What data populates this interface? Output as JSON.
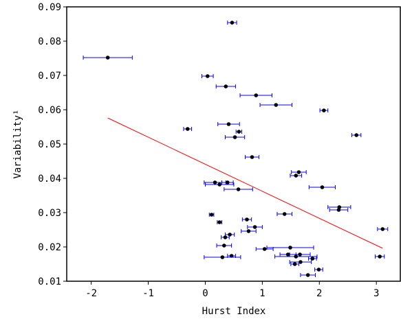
{
  "chart_data": {
    "type": "scatter",
    "xlabel": "Hurst Index",
    "ylabel": "Variability¹",
    "xlim": [
      -2.43,
      3.42
    ],
    "ylim": [
      0.01,
      0.09
    ],
    "xticks": [
      -2,
      -1,
      0,
      1,
      2,
      3
    ],
    "yticks": [
      0.01,
      0.02,
      0.03,
      0.04,
      0.05,
      0.06,
      0.07,
      0.08,
      0.09
    ],
    "series": [
      {
        "marker_color": "#000000",
        "error_color": "#0000ff",
        "x": [
          0.47,
          -1.71,
          0.04,
          0.36,
          0.89,
          1.24,
          2.08,
          -0.31,
          0.41,
          0.59,
          0.52,
          2.65,
          0.82,
          1.64,
          1.59,
          0.17,
          0.39,
          0.25,
          2.05,
          0.58,
          2.35,
          2.34,
          0.11,
          1.39,
          0.73,
          0.25,
          3.11,
          0.87,
          0.76,
          0.43,
          0.35,
          0.33,
          1.49,
          1.04,
          1.66,
          1.45,
          1.59,
          0.46,
          0.3,
          3.06,
          1.88,
          1.67,
          1.57,
          1.99,
          1.8
        ],
        "y": [
          0.0854,
          0.0752,
          0.0698,
          0.0668,
          0.0642,
          0.0614,
          0.0598,
          0.0544,
          0.0558,
          0.0536,
          0.052,
          0.0526,
          0.0462,
          0.0418,
          0.0408,
          0.0388,
          0.0388,
          0.0382,
          0.0374,
          0.0368,
          0.0316,
          0.0308,
          0.0294,
          0.0296,
          0.028,
          0.0272,
          0.0252,
          0.0258,
          0.0246,
          0.0236,
          0.0228,
          0.0204,
          0.0198,
          0.0194,
          0.0178,
          0.0178,
          0.0172,
          0.0174,
          0.017,
          0.0172,
          0.0166,
          0.0156,
          0.015,
          0.0134,
          0.0118
        ],
        "xerr": [
          0.08,
          0.43,
          0.1,
          0.17,
          0.28,
          0.28,
          0.07,
          0.07,
          0.19,
          0.05,
          0.17,
          0.08,
          0.12,
          0.13,
          0.1,
          0.19,
          0.1,
          0.25,
          0.23,
          0.25,
          0.2,
          0.16,
          0.04,
          0.13,
          0.08,
          0.04,
          0.09,
          0.13,
          0.13,
          0.08,
          0.07,
          0.13,
          0.41,
          0.15,
          0.18,
          0.14,
          0.37,
          0.07,
          0.32,
          0.08,
          0.07,
          0.19,
          0.07,
          0.07,
          0.13
        ]
      }
    ],
    "fit_line": {
      "x": [
        -1.71,
        3.11
      ],
      "y": [
        0.0576,
        0.0196
      ],
      "color": "#ff0000"
    }
  }
}
